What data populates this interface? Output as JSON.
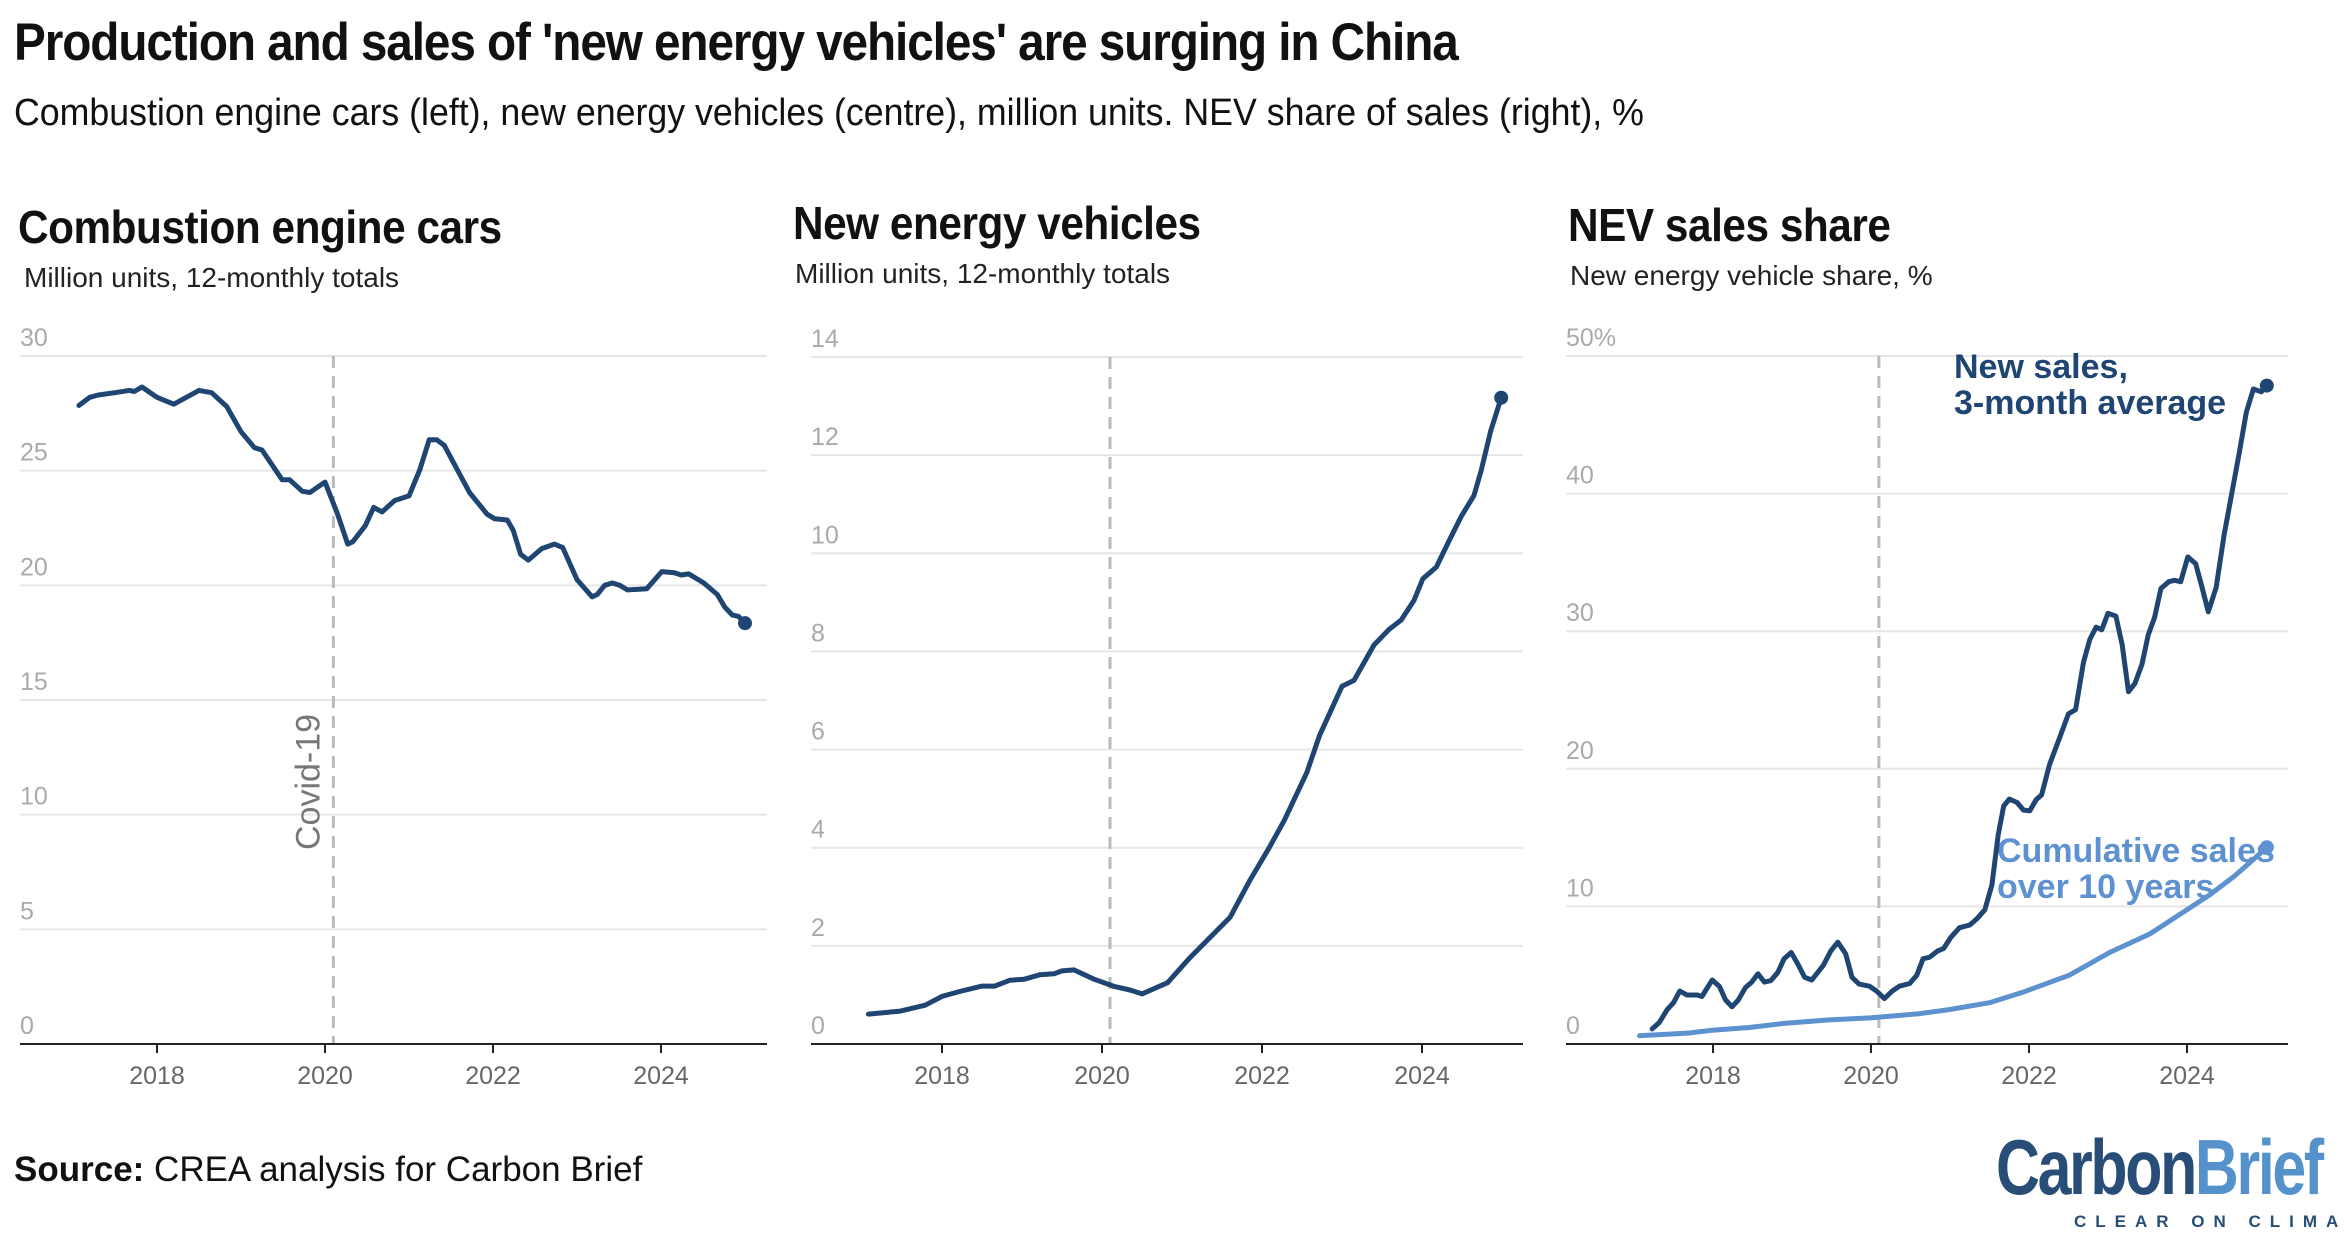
{
  "header": {
    "title": "Production and sales of 'new energy vehicles' are surging in China",
    "subtitle": "Combustion engine cars (left), new energy vehicles (centre), million units. NEV share of sales (right), %"
  },
  "footer": {
    "source_label": "Source:",
    "source_text": " CREA analysis for Carbon Brief",
    "logo_text_dark": "Carbon",
    "logo_text_light": "Brief",
    "logo_tagline": "CLEAR ON CLIMATE"
  },
  "colors": {
    "dark_series": "#1f4573",
    "light_series": "#5d91cf",
    "grid": "#e6e6e6",
    "covid_line": "#bbbbbb",
    "logo_dark": "#284d77",
    "logo_light": "#5592cc"
  },
  "chart_data": [
    {
      "type": "line",
      "title": "Combustion engine cars",
      "subtitle": "Million units, 12-monthly totals",
      "ylim": [
        0,
        30
      ],
      "yticks": [
        "0",
        "5",
        "10",
        "15",
        "20",
        "25",
        "30"
      ],
      "xticks": [
        "2018",
        "2020",
        "2022",
        "2024"
      ],
      "grid": true,
      "annotation": {
        "label": "Covid-19",
        "x": 2020.1
      },
      "series": [
        {
          "x": [
            2017.07,
            2017.2,
            2017.3,
            2017.5,
            2017.67,
            2017.73,
            2017.82,
            2018.0,
            2018.2,
            2018.5,
            2018.65,
            2018.83,
            2019.0,
            2019.16,
            2019.25,
            2019.49,
            2019.58,
            2019.73,
            2019.82,
            2020.0,
            2020.15,
            2020.27,
            2020.33,
            2020.48,
            2020.58,
            2020.68,
            2020.83,
            2021.0,
            2021.13,
            2021.24,
            2021.33,
            2021.42,
            2021.72,
            2021.93,
            2022.02,
            2022.17,
            2022.24,
            2022.33,
            2022.42,
            2022.58,
            2022.73,
            2022.83,
            2023.0,
            2023.18,
            2023.24,
            2023.33,
            2023.42,
            2023.51,
            2023.6,
            2023.83,
            2024.01,
            2024.16,
            2024.24,
            2024.33,
            2024.51,
            2024.67,
            2024.76,
            2024.85,
            2024.92,
            2025.0
          ],
          "y": [
            27.84,
            28.2,
            28.3,
            28.4,
            28.5,
            28.45,
            28.65,
            28.2,
            27.9,
            28.5,
            28.4,
            27.8,
            26.7,
            26.0,
            25.9,
            24.6,
            24.6,
            24.1,
            24.05,
            24.5,
            23.1,
            21.8,
            21.9,
            22.6,
            23.4,
            23.2,
            23.7,
            23.9,
            25.05,
            26.35,
            26.35,
            26.1,
            24.05,
            23.1,
            22.9,
            22.85,
            22.4,
            21.35,
            21.1,
            21.6,
            21.8,
            21.65,
            20.25,
            19.5,
            19.6,
            20.0,
            20.1,
            20.0,
            19.8,
            19.85,
            20.6,
            20.55,
            20.45,
            20.5,
            20.1,
            19.6,
            19.05,
            18.7,
            18.65,
            18.35
          ],
          "color": "#1f4573"
        }
      ]
    },
    {
      "type": "line",
      "title": "New energy vehicles",
      "subtitle": "Million units, 12-monthly totals",
      "ylim": [
        0,
        14
      ],
      "yticks": [
        "0",
        "2",
        "4",
        "6",
        "8",
        "10",
        "12",
        "14"
      ],
      "xticks": [
        "2018",
        "2020",
        "2022",
        "2024"
      ],
      "grid": true,
      "annotation": {
        "x": 2020.1
      },
      "series": [
        {
          "x": [
            2017.08,
            2017.48,
            2017.79,
            2018.0,
            2018.22,
            2018.5,
            2018.66,
            2018.85,
            2019.03,
            2019.22,
            2019.4,
            2019.5,
            2019.65,
            2019.9,
            2020.16,
            2020.35,
            2020.5,
            2020.82,
            2021.1,
            2021.35,
            2021.6,
            2021.85,
            2022.09,
            2022.28,
            2022.56,
            2022.72,
            2023.0,
            2023.15,
            2023.4,
            2023.59,
            2023.74,
            2023.9,
            2024.01,
            2024.18,
            2024.34,
            2024.49,
            2024.65,
            2024.74,
            2024.86,
            2024.99
          ],
          "y": [
            0.61,
            0.67,
            0.79,
            0.97,
            1.07,
            1.18,
            1.18,
            1.3,
            1.32,
            1.41,
            1.43,
            1.49,
            1.51,
            1.32,
            1.17,
            1.1,
            1.02,
            1.25,
            1.76,
            2.17,
            2.58,
            3.34,
            4.0,
            4.56,
            5.53,
            6.29,
            7.29,
            7.41,
            8.13,
            8.45,
            8.64,
            9.04,
            9.48,
            9.72,
            10.26,
            10.75,
            11.18,
            11.69,
            12.5,
            13.17
          ],
          "color": "#1f4573"
        }
      ]
    },
    {
      "type": "line",
      "title": "NEV sales share",
      "subtitle": "New energy vehicle share, %",
      "ylim": [
        0,
        50
      ],
      "yticks": [
        "0",
        "10",
        "20",
        "30",
        "40",
        "50%"
      ],
      "xticks": [
        "2018",
        "2020",
        "2022",
        "2024"
      ],
      "grid": true,
      "annotation": {
        "x": 2020.1
      },
      "series": [
        {
          "name": "New sales, 3-month average",
          "label_lines": [
            "New sales,",
            "3-month average"
          ],
          "color": "#1f4573",
          "x": [
            2017.23,
            2017.32,
            2017.42,
            2017.5,
            2017.58,
            2017.67,
            2017.8,
            2017.86,
            2017.99,
            2018.08,
            2018.16,
            2018.24,
            2018.32,
            2018.41,
            2018.49,
            2018.57,
            2018.65,
            2018.73,
            2018.82,
            2018.9,
            2018.99,
            2019.08,
            2019.16,
            2019.25,
            2019.4,
            2019.49,
            2019.58,
            2019.68,
            2019.76,
            2019.85,
            2019.98,
            2020.07,
            2020.17,
            2020.27,
            2020.36,
            2020.49,
            2020.58,
            2020.66,
            2020.74,
            2020.84,
            2020.92,
            2021.01,
            2021.12,
            2021.25,
            2021.34,
            2021.44,
            2021.53,
            2021.61,
            2021.68,
            2021.75,
            2021.85,
            2021.93,
            2022.01,
            2022.09,
            2022.16,
            2022.26,
            2022.39,
            2022.5,
            2022.59,
            2022.69,
            2022.77,
            2022.85,
            2022.92,
            2023.0,
            2023.1,
            2023.18,
            2023.26,
            2023.34,
            2023.43,
            2023.51,
            2023.59,
            2023.67,
            2023.77,
            2023.84,
            2023.92,
            2024.01,
            2024.11,
            2024.19,
            2024.27,
            2024.37,
            2024.47,
            2024.57,
            2024.66,
            2024.75,
            2024.84,
            2024.94,
            2025.01
          ],
          "y": [
            1.1,
            1.56,
            2.5,
            3.0,
            3.85,
            3.56,
            3.56,
            3.45,
            4.65,
            4.2,
            3.2,
            2.7,
            3.2,
            4.1,
            4.5,
            5.1,
            4.5,
            4.6,
            5.2,
            6.2,
            6.65,
            5.75,
            4.85,
            4.65,
            5.75,
            6.75,
            7.4,
            6.55,
            4.85,
            4.35,
            4.2,
            3.85,
            3.3,
            3.85,
            4.2,
            4.4,
            5.0,
            6.2,
            6.3,
            6.75,
            6.95,
            7.75,
            8.45,
            8.65,
            9.1,
            9.75,
            11.55,
            15.2,
            17.3,
            17.8,
            17.55,
            17.0,
            16.95,
            17.75,
            18.1,
            20.3,
            22.3,
            24.0,
            24.3,
            27.75,
            29.4,
            30.3,
            30.1,
            31.3,
            31.1,
            29.0,
            25.6,
            26.2,
            27.6,
            29.75,
            31.0,
            33.1,
            33.6,
            33.7,
            33.6,
            35.4,
            34.9,
            33.2,
            31.4,
            33.2,
            37.0,
            40.1,
            42.9,
            45.9,
            47.6,
            47.4,
            47.85
          ]
        },
        {
          "name": "Cumulative sales over 10 years",
          "label_lines": [
            "Cumulative sales",
            "over 10 years"
          ],
          "color": "#5d91cf",
          "x": [
            2017.07,
            2017.7,
            2017.99,
            2018.46,
            2018.9,
            2019.47,
            2019.99,
            2020.61,
            2020.99,
            2021.5,
            2021.94,
            2022.51,
            2023.02,
            2023.53,
            2024.01,
            2024.29,
            2024.6,
            2024.85,
            2025.01
          ],
          "y": [
            0.6,
            0.8,
            1.0,
            1.2,
            1.5,
            1.75,
            1.9,
            2.2,
            2.5,
            3.0,
            3.8,
            5.0,
            6.65,
            8.0,
            9.8,
            10.85,
            12.2,
            13.45,
            14.3
          ]
        }
      ]
    }
  ]
}
